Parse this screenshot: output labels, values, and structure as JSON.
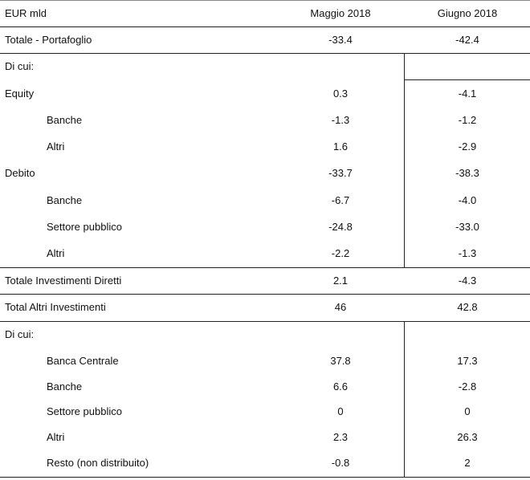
{
  "table": {
    "header": {
      "label": "EUR mld",
      "col1": "Maggio 2018",
      "col2": "Giugno 2018"
    },
    "rows": [
      {
        "label": "Totale - Portafoglio",
        "v1": "-33.4",
        "v2": "-42.4"
      },
      {
        "label": "Di cui:",
        "v1": "",
        "v2": ""
      },
      {
        "label": "Equity",
        "v1": "0.3",
        "v2": "-4.1"
      },
      {
        "label": "Banche",
        "v1": "-1.3",
        "v2": "-1.2"
      },
      {
        "label": "Altri",
        "v1": "1.6",
        "v2": "-2.9"
      },
      {
        "label": "Debito",
        "v1": "-33.7",
        "v2": "-38.3"
      },
      {
        "label": "Banche",
        "v1": "-6.7",
        "v2": "-4.0"
      },
      {
        "label": "Settore pubblico",
        "v1": "-24.8",
        "v2": "-33.0"
      },
      {
        "label": "Altri",
        "v1": "-2.2",
        "v2": "-1.3"
      },
      {
        "label": "Totale Investimenti Diretti",
        "v1": "2.1",
        "v2": "-4.3"
      },
      {
        "label": "Total Altri Investimenti",
        "v1": "46",
        "v2": "42.8"
      },
      {
        "label": "Di cui:",
        "v1": "",
        "v2": ""
      },
      {
        "label": "Banca Centrale",
        "v1": "37.8",
        "v2": "17.3"
      },
      {
        "label": "Banche",
        "v1": "6.6",
        "v2": "-2.8"
      },
      {
        "label": "Settore pubblico",
        "v1": "0",
        "v2": "0"
      },
      {
        "label": "Altri",
        "v1": "2.3",
        "v2": "26.3"
      },
      {
        "label": "Resto (non distribuito)",
        "v1": "-0.8",
        "v2": "2"
      }
    ]
  }
}
